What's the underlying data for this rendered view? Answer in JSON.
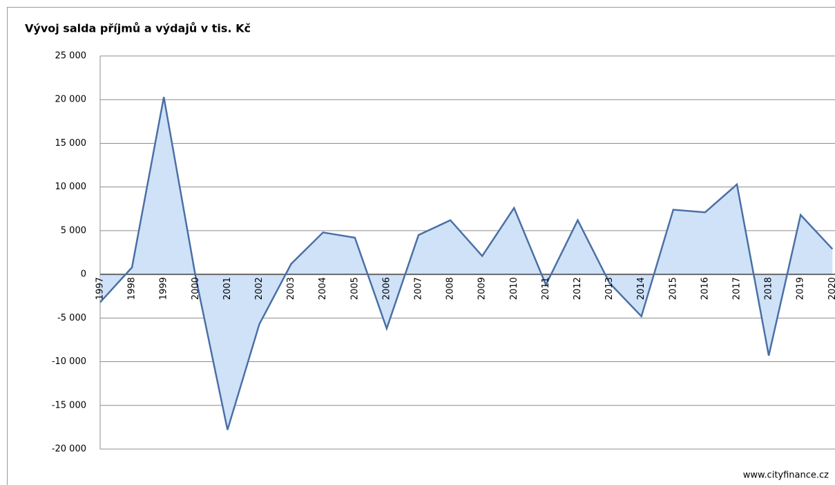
{
  "chart_data": {
    "type": "area",
    "title": "Vývoj salda příjmů a výdajů v tis. Kč",
    "source": "www.cityfinance.cz",
    "categories": [
      "1997",
      "1998",
      "1999",
      "2000",
      "2001",
      "2002",
      "2003",
      "2004",
      "2005",
      "2006",
      "2007",
      "2008",
      "2009",
      "2010",
      "2011",
      "2012",
      "2013",
      "2014",
      "2015",
      "2016",
      "2017",
      "2018",
      "2019",
      "2020"
    ],
    "values": [
      -3200,
      800,
      20300,
      -300,
      -17800,
      -5700,
      1200,
      4800,
      4200,
      -6200,
      4500,
      6200,
      2100,
      7600,
      -1200,
      6200,
      -1000,
      -4800,
      7400,
      7100,
      10300,
      -9300,
      6800,
      2900
    ],
    "color": "#cfe2f8",
    "line_color": "#4a6fa5",
    "ylim": [
      -20000,
      25000
    ],
    "yticks": [
      {
        "value": -20000,
        "label": "-20 000"
      },
      {
        "value": -15000,
        "label": "-15 000"
      },
      {
        "value": -10000,
        "label": "-10 000"
      },
      {
        "value": -5000,
        "label": "-5 000"
      },
      0,
      {
        "value": 5000,
        "label": "5 000"
      },
      {
        "value": 10000,
        "label": "10 000"
      },
      {
        "value": 15000,
        "label": "15 000"
      },
      {
        "value": 20000,
        "label": "20 000"
      },
      {
        "value": 25000,
        "label": "25 000"
      }
    ],
    "grid": true
  }
}
